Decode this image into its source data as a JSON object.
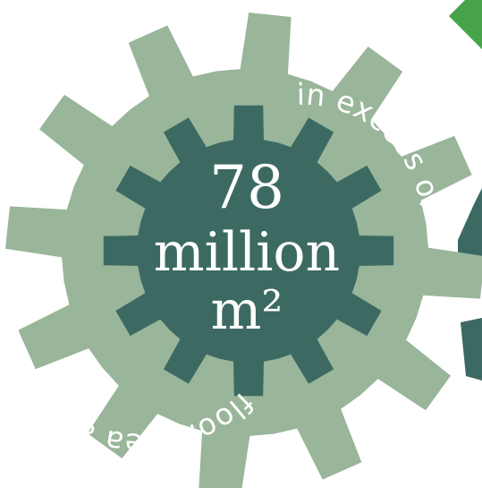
{
  "badge": {
    "number": "78",
    "unit_word": "million",
    "unit": "m²",
    "arc_top": "in excess of",
    "arc_bottom": "floor area assessed"
  },
  "colors": {
    "outer_gear": "#99b59a",
    "inner_gear": "#3c6a63",
    "corner_shape": "#47a34a",
    "right_gear": "#3c6a63",
    "text": "#ffffff",
    "background": "#ffffff"
  }
}
